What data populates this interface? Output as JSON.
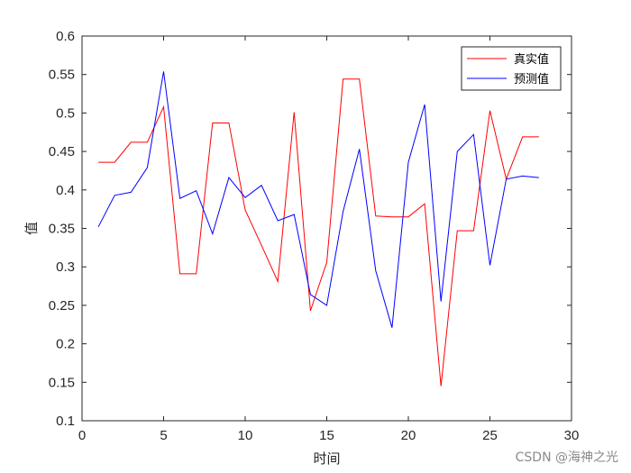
{
  "chart_data": {
    "type": "line",
    "xlabel": "时间",
    "ylabel": "值",
    "xlim": [
      0,
      30
    ],
    "ylim": [
      0.1,
      0.6
    ],
    "xticks": [
      0,
      5,
      10,
      15,
      20,
      25,
      30
    ],
    "yticks": [
      0.1,
      0.15,
      0.2,
      0.25,
      0.3,
      0.35,
      0.4,
      0.45,
      0.5,
      0.55,
      0.6
    ],
    "grid": false,
    "legend_position": "top-right",
    "x": [
      1,
      2,
      3,
      4,
      5,
      6,
      7,
      8,
      9,
      10,
      11,
      12,
      13,
      14,
      15,
      16,
      17,
      18,
      19,
      20,
      21,
      22,
      23,
      24,
      25,
      26,
      27,
      28
    ],
    "series": [
      {
        "name": "真实值",
        "color": "#ff0000",
        "values": [
          0.436,
          0.436,
          0.462,
          0.462,
          0.508,
          0.291,
          0.291,
          0.487,
          0.487,
          0.374,
          0.328,
          0.281,
          0.501,
          0.243,
          0.306,
          0.544,
          0.544,
          0.366,
          0.365,
          0.365,
          0.382,
          0.145,
          0.347,
          0.347,
          0.503,
          0.414,
          0.469,
          0.469
        ]
      },
      {
        "name": "预测值",
        "color": "#0000ff",
        "values": [
          0.352,
          0.393,
          0.397,
          0.429,
          0.554,
          0.389,
          0.399,
          0.343,
          0.416,
          0.39,
          0.406,
          0.36,
          0.368,
          0.264,
          0.25,
          0.372,
          0.453,
          0.295,
          0.221,
          0.436,
          0.511,
          0.255,
          0.45,
          0.472,
          0.302,
          0.414,
          0.418,
          0.416
        ]
      }
    ]
  },
  "watermark": "CSDN @海神之光"
}
